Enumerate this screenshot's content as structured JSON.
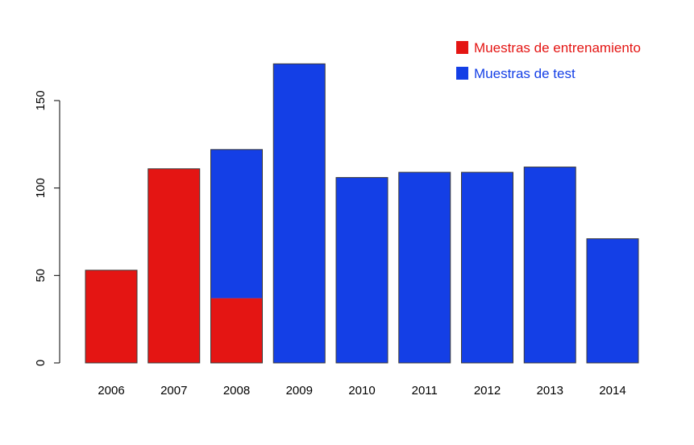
{
  "chart_data": {
    "type": "bar",
    "stacked": true,
    "categories": [
      "2006",
      "2007",
      "2008",
      "2009",
      "2010",
      "2011",
      "2012",
      "2013",
      "2014"
    ],
    "series": [
      {
        "name": "Muestras de entrenamiento",
        "color": "#E41513",
        "values": [
          53,
          111,
          37,
          0,
          0,
          0,
          0,
          0,
          0
        ]
      },
      {
        "name": "Muestras de test",
        "color": "#143FE6",
        "values": [
          0,
          0,
          85,
          171,
          106,
          109,
          109,
          112,
          71
        ]
      }
    ],
    "y_ticks": [
      "0",
      "50",
      "100",
      "150"
    ],
    "ylim": [
      0,
      171
    ],
    "grid": false,
    "legend_position": "top-right",
    "title": "",
    "xlabel": "",
    "ylabel": ""
  }
}
